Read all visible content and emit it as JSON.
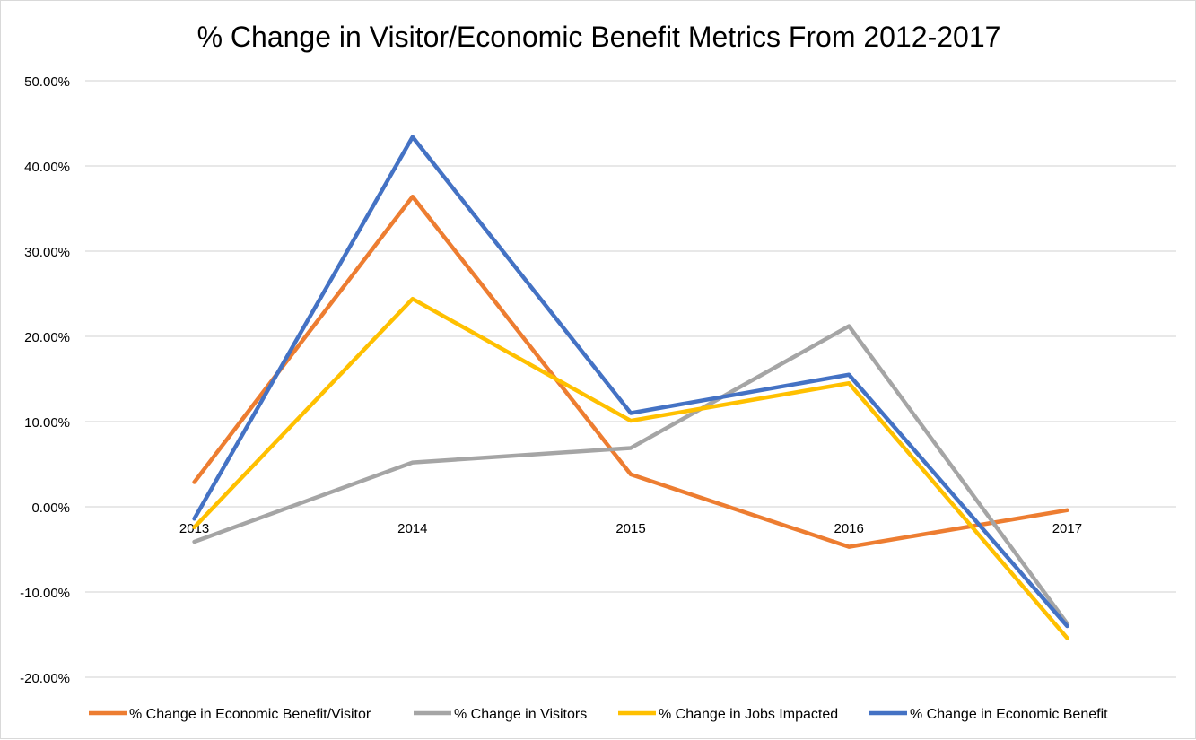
{
  "chart_data": {
    "type": "line",
    "title": "% Change in Visitor/Economic Benefit Metrics From 2012-2017",
    "xlabel": "",
    "ylabel": "",
    "categories": [
      "2013",
      "2014",
      "2015",
      "2016",
      "2017"
    ],
    "yticks": [
      50,
      40,
      30,
      20,
      10,
      0,
      -10,
      -20
    ],
    "ytick_labels": [
      "50.00%",
      "40.00%",
      "30.00%",
      "20.00%",
      "10.00%",
      "0.00%",
      "-10.00%",
      "-20.00%"
    ],
    "ylim": [
      -20,
      50
    ],
    "grid": true,
    "legend_position": "bottom",
    "series": [
      {
        "name": "% Change in Economic Benefit/Visitor",
        "color": "#ED7D31",
        "values": [
          2.9,
          36.4,
          3.8,
          -4.7,
          -0.4
        ]
      },
      {
        "name": "% Change in Visitors",
        "color": "#A5A5A5",
        "values": [
          -4.1,
          5.2,
          6.9,
          21.2,
          -13.7
        ]
      },
      {
        "name": "% Change in Jobs Impacted",
        "color": "#FFC000",
        "values": [
          -2.4,
          24.4,
          10.1,
          14.5,
          -15.4
        ]
      },
      {
        "name": "% Change in Economic Benefit",
        "color": "#4472C4",
        "values": [
          -1.4,
          43.4,
          11.0,
          15.5,
          -14.0
        ]
      }
    ]
  }
}
